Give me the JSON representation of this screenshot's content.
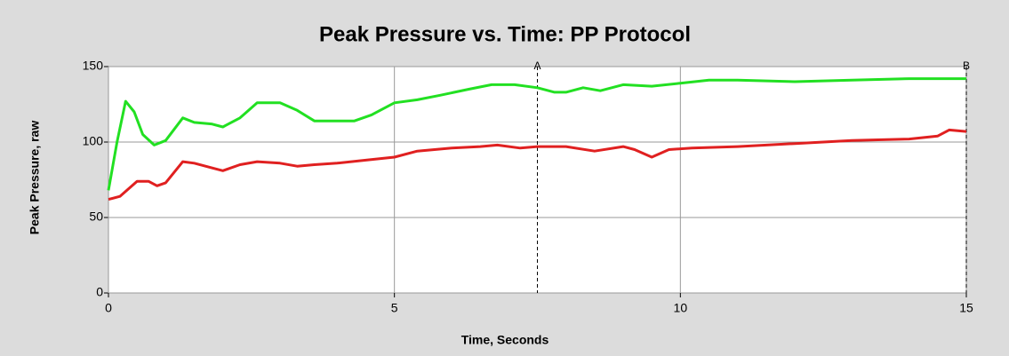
{
  "chart_data": {
    "type": "line",
    "title": "Peak Pressure vs. Time: PP Protocol",
    "xlabel": "Time, Seconds",
    "ylabel": "Peak Pressure, raw",
    "xlim": [
      0,
      15
    ],
    "xticks": [
      0,
      5,
      10,
      15
    ],
    "ylim": [
      0,
      150
    ],
    "yticks": [
      0,
      50,
      100,
      150
    ],
    "grid": true,
    "markers": [
      {
        "x": 7.5,
        "label": "A"
      },
      {
        "x": 15,
        "label": "B"
      }
    ],
    "series": [
      {
        "color": "#22e022",
        "x": [
          0,
          0.15,
          0.3,
          0.45,
          0.6,
          0.8,
          1.0,
          1.3,
          1.5,
          1.8,
          2.0,
          2.3,
          2.6,
          3.0,
          3.3,
          3.6,
          4.0,
          4.3,
          4.6,
          5.0,
          5.4,
          5.8,
          6.3,
          6.7,
          7.1,
          7.5,
          7.8,
          8.0,
          8.3,
          8.6,
          9.0,
          9.5,
          10.0,
          10.5,
          11,
          12,
          13,
          14,
          15
        ],
        "values": [
          68,
          100,
          127,
          120,
          105,
          98,
          101,
          116,
          113,
          112,
          110,
          116,
          126,
          126,
          121,
          114,
          114,
          114,
          118,
          126,
          128,
          131,
          135,
          138,
          138,
          136,
          133,
          133,
          136,
          134,
          138,
          137,
          139,
          141,
          141,
          140,
          141,
          142,
          142
        ]
      },
      {
        "color": "#e02020",
        "x": [
          0,
          0.2,
          0.5,
          0.7,
          0.85,
          1.0,
          1.3,
          1.5,
          1.8,
          2.0,
          2.3,
          2.6,
          3.0,
          3.3,
          3.6,
          4.0,
          4.5,
          5.0,
          5.4,
          6.0,
          6.5,
          6.8,
          7.2,
          7.5,
          8.0,
          8.5,
          9.0,
          9.2,
          9.5,
          9.8,
          10.2,
          11,
          12,
          12.5,
          13,
          14,
          14.5,
          14.7,
          15
        ],
        "values": [
          62,
          64,
          74,
          74,
          71,
          73,
          87,
          86,
          83,
          81,
          85,
          87,
          86,
          84,
          85,
          86,
          88,
          90,
          94,
          96,
          97,
          98,
          96,
          97,
          97,
          94,
          97,
          95,
          90,
          95,
          96,
          97,
          99,
          100,
          101,
          102,
          104,
          108,
          107
        ]
      }
    ]
  }
}
